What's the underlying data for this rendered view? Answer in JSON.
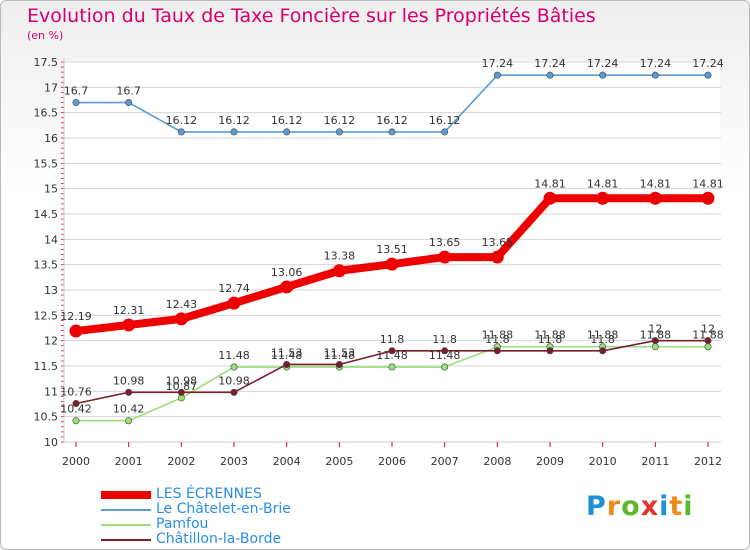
{
  "title": "Evolution du Taux de Taxe Foncière sur les Propriétés Bâties",
  "subtitle": "(en %)",
  "logo_text": "Proxiti",
  "logo_colors": [
    "#1e8fd8",
    "#f08c1a",
    "#5cb82e",
    "#e0342c",
    "#1e8fd8",
    "#f08c1a",
    "#5cb82e"
  ],
  "chart_data": {
    "type": "line",
    "title": "Evolution du Taux de Taxe Foncière sur les Propriétés Bâties",
    "ylabel": "(en %)",
    "xlabel": "",
    "ylim": [
      10,
      17.5
    ],
    "yticks": [
      "10",
      "10.5",
      "11",
      "11.5",
      "12",
      "12.5",
      "13",
      "13.5",
      "14",
      "14.5",
      "15",
      "15.5",
      "16",
      "16.5",
      "17",
      "17.5"
    ],
    "categories": [
      "2000",
      "2001",
      "2002",
      "2003",
      "2004",
      "2005",
      "2006",
      "2007",
      "2008",
      "2009",
      "2010",
      "2011",
      "2012"
    ],
    "grid": true,
    "legend_position": "bottom-left",
    "series": [
      {
        "name": "Le Châtelet-en-Brie",
        "color": "#5b9bd5",
        "values": [
          16.7,
          16.7,
          16.12,
          16.12,
          16.12,
          16.12,
          16.12,
          16.12,
          17.24,
          17.24,
          17.24,
          17.24,
          17.24
        ]
      },
      {
        "name": "Pamfou",
        "color": "#99e07a",
        "values": [
          10.42,
          10.42,
          10.87,
          11.48,
          11.48,
          11.48,
          11.48,
          11.48,
          11.88,
          11.88,
          11.88,
          11.88,
          11.88
        ]
      },
      {
        "name": "Châtillon-la-Borde",
        "color": "#7a1e2e",
        "values": [
          10.76,
          10.98,
          10.98,
          10.98,
          11.53,
          11.53,
          11.8,
          11.8,
          11.8,
          11.8,
          11.8,
          12,
          12
        ]
      },
      {
        "name": "LES ÉCRENNES",
        "color": "#ee0000",
        "values": [
          12.19,
          12.31,
          12.43,
          12.74,
          13.06,
          13.38,
          13.51,
          13.65,
          13.65,
          14.81,
          14.81,
          14.81,
          14.81
        ]
      }
    ],
    "legend": [
      {
        "name": "LES ÉCRENNES",
        "color": "#ee0000"
      },
      {
        "name": "Le Châtelet-en-Brie",
        "color": "#5b9bd5"
      },
      {
        "name": "Pamfou",
        "color": "#99e07a"
      },
      {
        "name": "Châtillon-la-Borde",
        "color": "#7a1e2e"
      }
    ]
  }
}
